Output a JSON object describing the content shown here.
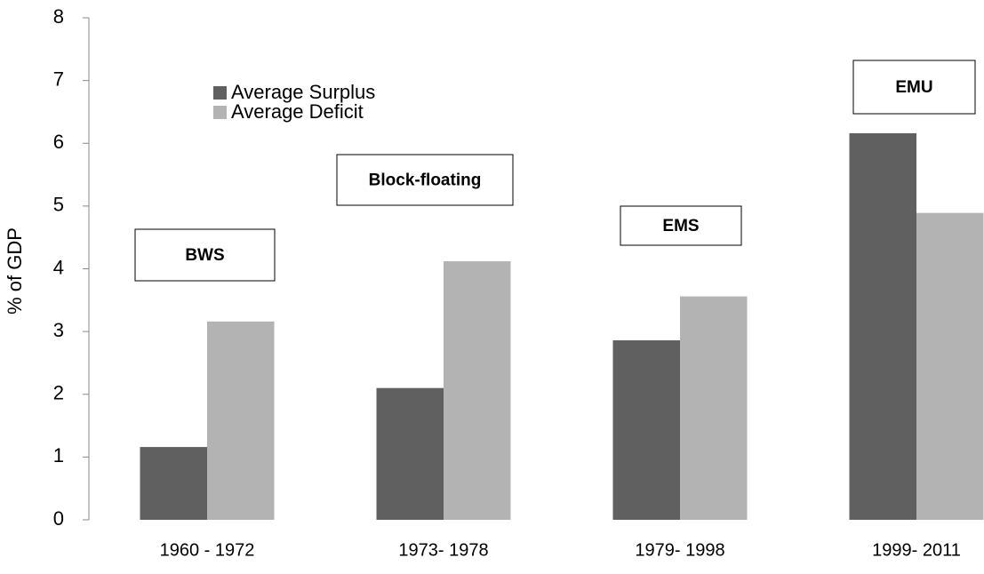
{
  "chart_data": {
    "type": "bar",
    "y_label": "% of GDP",
    "categories": [
      "1960 - 1972",
      "1973- 1978",
      "1979- 1998",
      "1999- 2011"
    ],
    "series": [
      {
        "name": "Average Surplus",
        "color": "#606060",
        "values": [
          1.16,
          2.1,
          2.86,
          6.16
        ]
      },
      {
        "name": "Average Deficit",
        "color": "#b3b3b3",
        "values": [
          3.16,
          4.12,
          3.56,
          4.89
        ]
      }
    ],
    "annotations": [
      "BWS",
      "Block-floating",
      "EMS",
      "EMU"
    ],
    "ylim": [
      0,
      8
    ],
    "yticks": [
      0,
      1,
      2,
      3,
      4,
      5,
      6,
      7,
      8
    ],
    "grid": false
  }
}
